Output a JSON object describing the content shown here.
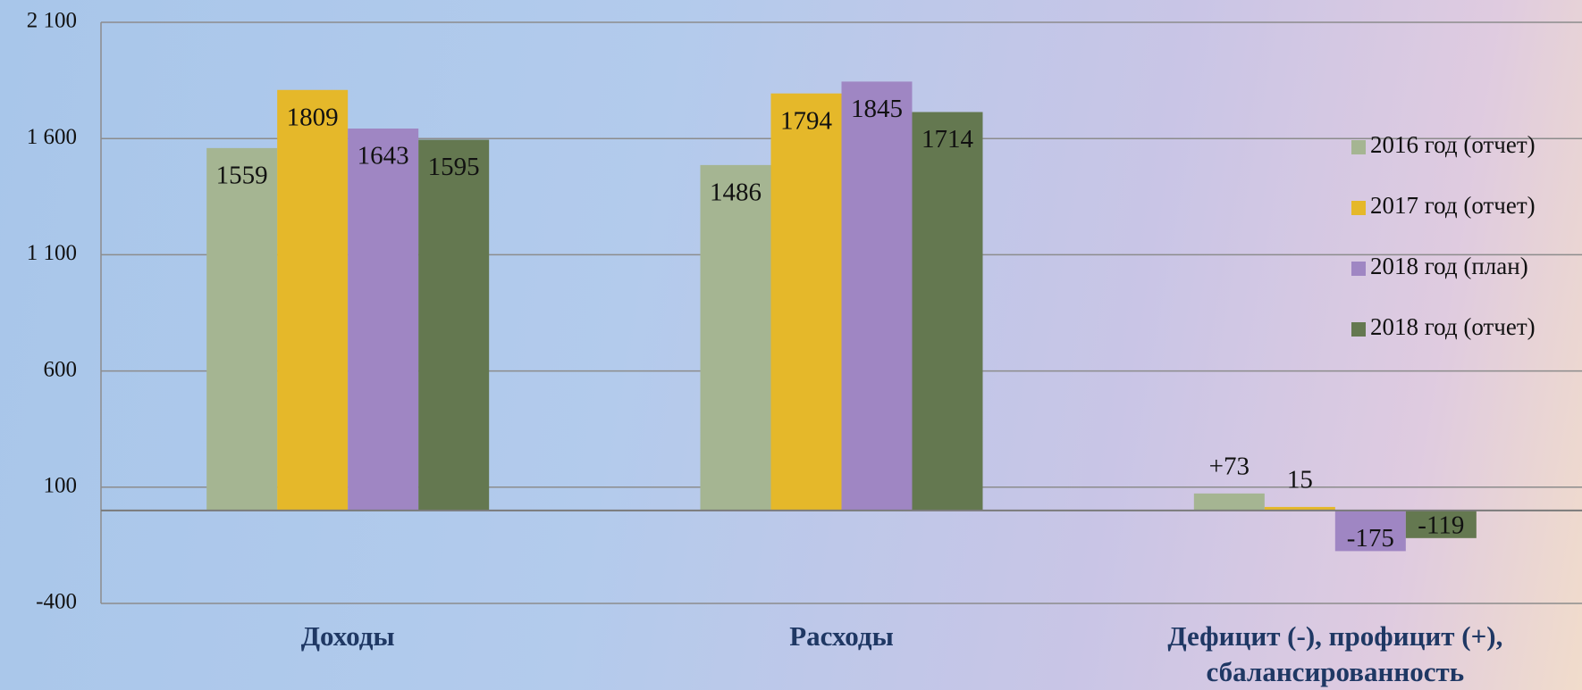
{
  "chart_data": {
    "type": "bar",
    "categories": [
      "Доходы",
      "Расходы",
      "Дефицит (-), профицит (+), сбалансированность"
    ],
    "series": [
      {
        "name": "2016 год (отчет)",
        "color": "#a5b592",
        "values": [
          1559,
          1486,
          73
        ],
        "value_labels": [
          "1559",
          "1486",
          "+73"
        ]
      },
      {
        "name": "2017 год (отчет)",
        "color": "#e5b82a",
        "values": [
          1809,
          1794,
          15
        ]
      },
      {
        "name": "2018 год (план)",
        "color": "#9f86c3",
        "values": [
          1643,
          1845,
          -175
        ]
      },
      {
        "name": "2018 год (отчет)",
        "color": "#647850",
        "values": [
          1595,
          1714,
          -119
        ]
      }
    ],
    "ylim": [
      -400,
      2100
    ],
    "yticks": [
      -400,
      100,
      600,
      {
        "value": 1100,
        "label": "1 100"
      },
      {
        "value": 1600,
        "label": "1 600"
      },
      {
        "value": 2100,
        "label": "2 100"
      }
    ],
    "grid": true,
    "legend": "right"
  }
}
